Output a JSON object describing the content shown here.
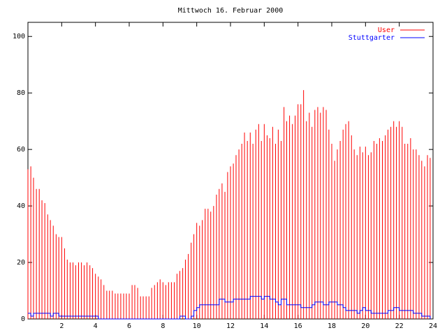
{
  "chart_data": {
    "type": "impulses",
    "title": "Mittwoch 16. Februar 2000",
    "x": [
      0,
      0.17,
      0.33,
      0.5,
      0.67,
      0.83,
      1,
      1.17,
      1.33,
      1.5,
      1.67,
      1.83,
      2,
      2.17,
      2.33,
      2.5,
      2.67,
      2.83,
      3,
      3.17,
      3.33,
      3.5,
      3.67,
      3.83,
      4,
      4.17,
      4.33,
      4.5,
      4.67,
      4.83,
      5,
      5.17,
      5.33,
      5.5,
      5.67,
      5.83,
      6,
      6.17,
      6.33,
      6.5,
      6.67,
      6.83,
      7,
      7.17,
      7.33,
      7.5,
      7.67,
      7.83,
      8,
      8.17,
      8.33,
      8.5,
      8.67,
      8.83,
      9,
      9.17,
      9.33,
      9.5,
      9.67,
      9.83,
      10,
      10.17,
      10.33,
      10.5,
      10.67,
      10.83,
      11,
      11.17,
      11.33,
      11.5,
      11.67,
      11.83,
      12,
      12.17,
      12.33,
      12.5,
      12.67,
      12.83,
      13,
      13.17,
      13.33,
      13.5,
      13.67,
      13.83,
      14,
      14.17,
      14.33,
      14.5,
      14.67,
      14.83,
      15,
      15.17,
      15.33,
      15.5,
      15.67,
      15.83,
      16,
      16.17,
      16.33,
      16.5,
      16.67,
      16.83,
      17,
      17.17,
      17.33,
      17.5,
      17.67,
      17.83,
      18,
      18.17,
      18.33,
      18.5,
      18.67,
      18.83,
      19,
      19.17,
      19.33,
      19.5,
      19.67,
      19.83,
      20,
      20.17,
      20.33,
      20.5,
      20.67,
      20.83,
      21,
      21.17,
      21.33,
      21.5,
      21.67,
      21.83,
      22,
      22.17,
      22.33,
      22.5,
      22.67,
      22.83,
      23,
      23.17,
      23.33,
      23.5,
      23.67,
      23.83
    ],
    "series": [
      {
        "name": "User",
        "color": "#ff0000",
        "style": "impulses",
        "values": [
          53,
          54,
          50,
          46,
          46,
          42,
          41,
          37,
          35,
          33,
          30,
          29,
          29,
          25,
          21,
          20,
          20,
          19,
          20,
          20,
          19,
          20,
          19,
          18,
          16,
          15,
          14,
          12,
          10,
          10,
          10,
          9,
          9,
          9,
          9,
          9,
          9,
          12,
          12,
          11,
          8,
          8,
          8,
          8,
          11,
          12,
          13,
          14,
          13,
          12,
          13,
          13,
          13,
          16,
          17,
          18,
          21,
          23,
          27,
          30,
          34,
          33,
          35,
          39,
          39,
          38,
          40,
          44,
          46,
          48,
          45,
          52,
          54,
          55,
          58,
          60,
          62,
          66,
          63,
          66,
          62,
          67,
          69,
          63,
          69,
          65,
          64,
          68,
          62,
          67,
          63,
          75,
          70,
          72,
          69,
          72,
          76,
          76,
          81,
          70,
          73,
          68,
          74,
          75,
          73,
          75,
          74,
          67,
          62,
          56,
          60,
          63,
          67,
          69,
          70,
          65,
          60,
          58,
          61,
          59,
          61,
          58,
          59,
          63,
          62,
          64,
          63,
          65,
          67,
          68,
          70,
          68,
          70,
          68,
          62,
          62,
          64,
          60,
          60,
          58,
          56,
          54,
          58,
          57
        ]
      },
      {
        "name": "Stuttgarter",
        "color": "#0000ff",
        "style": "steps",
        "values": [
          2,
          1,
          2,
          2,
          2,
          2,
          2,
          2,
          1,
          2,
          2,
          1,
          1,
          1,
          1,
          1,
          1,
          1,
          1,
          1,
          1,
          1,
          1,
          1,
          1,
          0,
          0,
          0,
          0,
          0,
          0,
          0,
          0,
          0,
          0,
          0,
          0,
          0,
          0,
          0,
          0,
          0,
          0,
          0,
          0,
          0,
          0,
          0,
          0,
          0,
          0,
          0,
          0,
          0,
          1,
          1,
          0,
          0,
          1,
          3,
          4,
          5,
          5,
          5,
          5,
          5,
          5,
          5,
          7,
          7,
          6,
          6,
          6,
          7,
          7,
          7,
          7,
          7,
          7,
          8,
          8,
          8,
          8,
          7,
          8,
          8,
          7,
          7,
          6,
          5,
          7,
          7,
          5,
          5,
          5,
          5,
          5,
          4,
          4,
          4,
          4,
          5,
          6,
          6,
          6,
          5,
          5,
          6,
          6,
          6,
          5,
          5,
          4,
          3,
          3,
          3,
          3,
          2,
          3,
          4,
          3,
          3,
          2,
          2,
          2,
          2,
          2,
          2,
          3,
          3,
          4,
          4,
          3,
          3,
          3,
          3,
          3,
          2,
          2,
          2,
          1,
          1,
          1,
          0
        ]
      }
    ],
    "xlim": [
      0,
      24
    ],
    "xticks": [
      2,
      4,
      6,
      8,
      10,
      12,
      14,
      16,
      18,
      20,
      22,
      24
    ],
    "ylim": [
      0,
      105
    ],
    "yticks": [
      0,
      20,
      40,
      60,
      80,
      100
    ],
    "legend": "top-right"
  }
}
